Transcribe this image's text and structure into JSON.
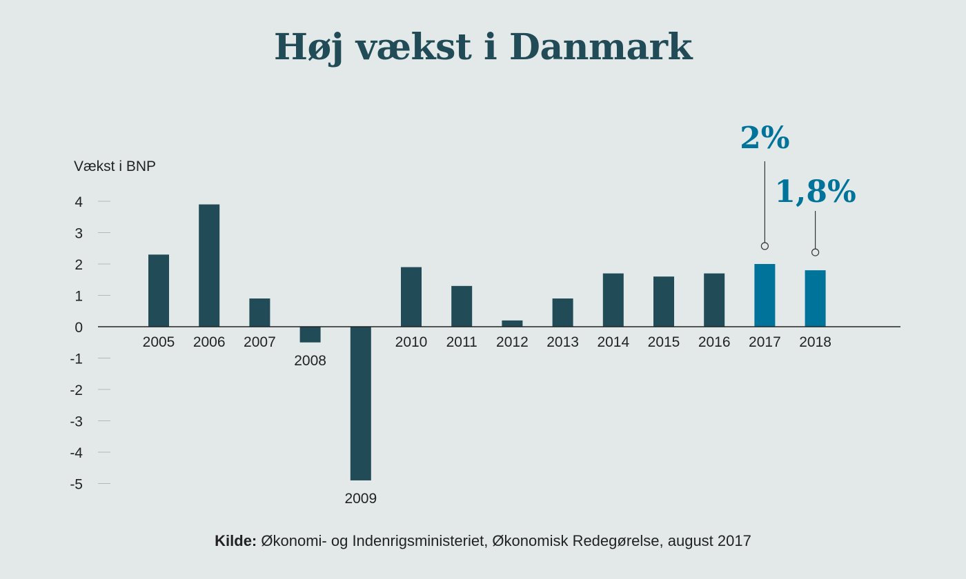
{
  "title": "Høj vækst i Danmark",
  "source": {
    "label": "Kilde:",
    "text": "Økonomi- og Indenrigsministeriet, Økonomisk Redegørelse, august 2017"
  },
  "colors": {
    "background": "#e3e9e9",
    "bar_main": "#214b57",
    "bar_highlight": "#00739b",
    "title": "#214b57"
  },
  "chart_data": {
    "type": "bar",
    "title": "Høj vækst i Danmark",
    "ylabel": "Vækst i BNP",
    "xlabel": "",
    "ylim": [
      -5,
      4
    ],
    "yticks": [
      "4",
      "3",
      "2",
      "1",
      "0",
      "-1",
      "-2",
      "-3",
      "-4",
      "-5"
    ],
    "categories": [
      "2005",
      "2006",
      "2007",
      "2008",
      "2009",
      "2010",
      "2011",
      "2012",
      "2013",
      "2014",
      "2015",
      "2016",
      "2017",
      "2018"
    ],
    "values": [
      2.3,
      3.9,
      0.9,
      -0.5,
      -4.9,
      1.9,
      1.3,
      0.2,
      0.9,
      1.7,
      1.6,
      1.7,
      2.0,
      1.8
    ],
    "highlight": [
      "2017",
      "2018"
    ],
    "annotations": [
      {
        "category": "2017",
        "text": "2%"
      },
      {
        "category": "2018",
        "text": "1,8%"
      }
    ],
    "grid": false
  }
}
